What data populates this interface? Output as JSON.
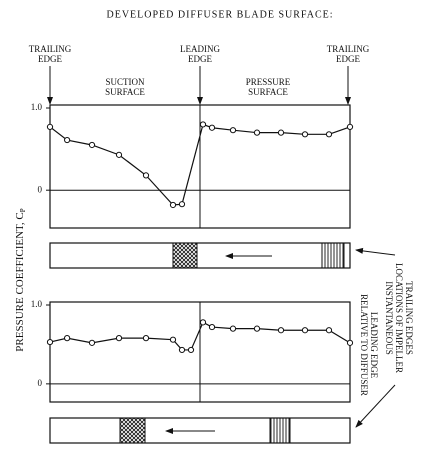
{
  "title": "DEVELOPED DIFFUSER BLADE SURFACE:",
  "labels": {
    "trailing_edge_left": [
      "TRAILING",
      "EDGE"
    ],
    "leading_edge": [
      "LEADING",
      "EDGE"
    ],
    "trailing_edge_right": [
      "TRAILING",
      "EDGE"
    ],
    "suction_surface": [
      "SUCTION",
      "SURFACE"
    ],
    "pressure_surface": [
      "PRESSURE",
      "SURFACE"
    ],
    "y_label": "PRESSURE      COEFFICIENT, C",
    "y_label_sub": "P",
    "relative": [
      "RELATIVE TO DIFFUSER",
      "LEADING EDGE"
    ],
    "instantaneous": [
      "INSTANTANEOUS",
      "LOCATIONS OF IMPELLER",
      "TRAILING EDGES"
    ]
  },
  "chart_data": [
    {
      "type": "line",
      "xlim": [
        0,
        100
      ],
      "ylim": [
        -0.46,
        1.0
      ],
      "yticks": [
        {
          "value": 1,
          "label": "1.0"
        },
        0
      ],
      "x": [
        0,
        5.7,
        14,
        23,
        32,
        41,
        44,
        51,
        54,
        61,
        69,
        77,
        85,
        93,
        100
      ],
      "series": [
        {
          "color": "#111111",
          "values": [
            0.77,
            0.61,
            0.55,
            0.43,
            0.18,
            -0.18,
            -0.17,
            0.8,
            0.76,
            0.73,
            0.7,
            0.7,
            0.68,
            0.68,
            0.77
          ]
        }
      ]
    },
    {
      "type": "line",
      "xlim": [
        0,
        100
      ],
      "ylim": [
        -0.23,
        1.0
      ],
      "yticks": [
        {
          "value": 1,
          "label": "1.0"
        },
        0
      ],
      "x": [
        0,
        5.7,
        14,
        23,
        32,
        41,
        44,
        47,
        51,
        54,
        61,
        69,
        77,
        85,
        93,
        100
      ],
      "series": [
        {
          "color": "#111111",
          "values": [
            0.53,
            0.58,
            0.52,
            0.58,
            0.58,
            0.56,
            0.43,
            0.43,
            0.78,
            0.72,
            0.7,
            0.7,
            0.68,
            0.68,
            0.68,
            0.52
          ]
        }
      ]
    }
  ]
}
